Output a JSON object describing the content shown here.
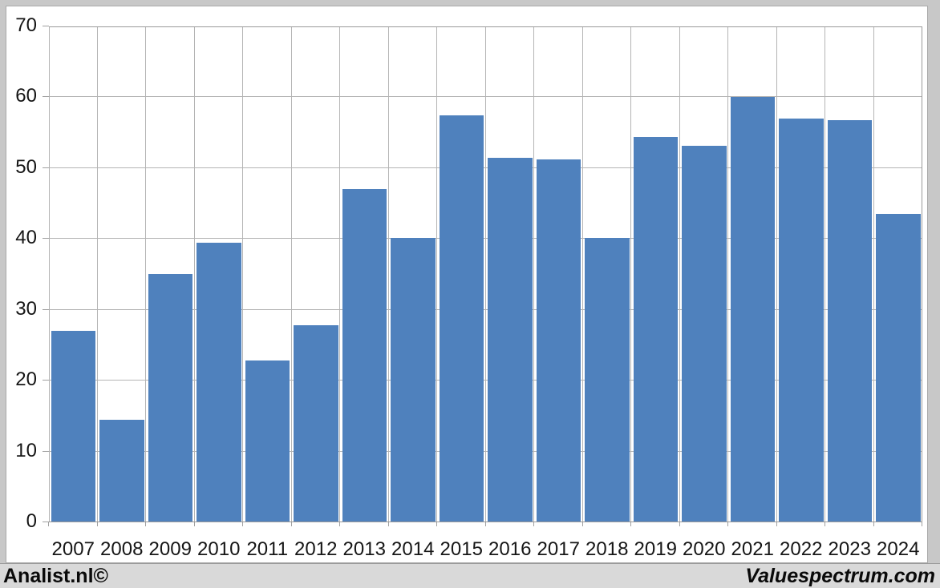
{
  "chart_data": {
    "type": "bar",
    "title": "",
    "categories": [
      "2007",
      "2008",
      "2009",
      "2010",
      "2011",
      "2012",
      "2013",
      "2014",
      "2015",
      "2016",
      "2017",
      "2018",
      "2019",
      "2020",
      "2021",
      "2022",
      "2023",
      "2024"
    ],
    "values": [
      27,
      14.5,
      35,
      39.5,
      22.8,
      27.8,
      47.1,
      40.1,
      57.5,
      51.4,
      51.2,
      40.1,
      54.4,
      53.2,
      60,
      57,
      56.8,
      43.5
    ],
    "xlabel": "",
    "ylabel": "",
    "ylim": [
      0,
      70
    ],
    "yticks": [
      0,
      10,
      20,
      30,
      40,
      50,
      60,
      70
    ],
    "grid": true,
    "legend_position": "none",
    "bar_color": "#4f81bd",
    "grid_color": "#b4b4b4",
    "axis_color": "#9a9a9a",
    "plot_background": "#ffffff"
  },
  "footer": {
    "left_brand": "Analist.nl©",
    "right_brand": "Valuespectrum.com"
  }
}
